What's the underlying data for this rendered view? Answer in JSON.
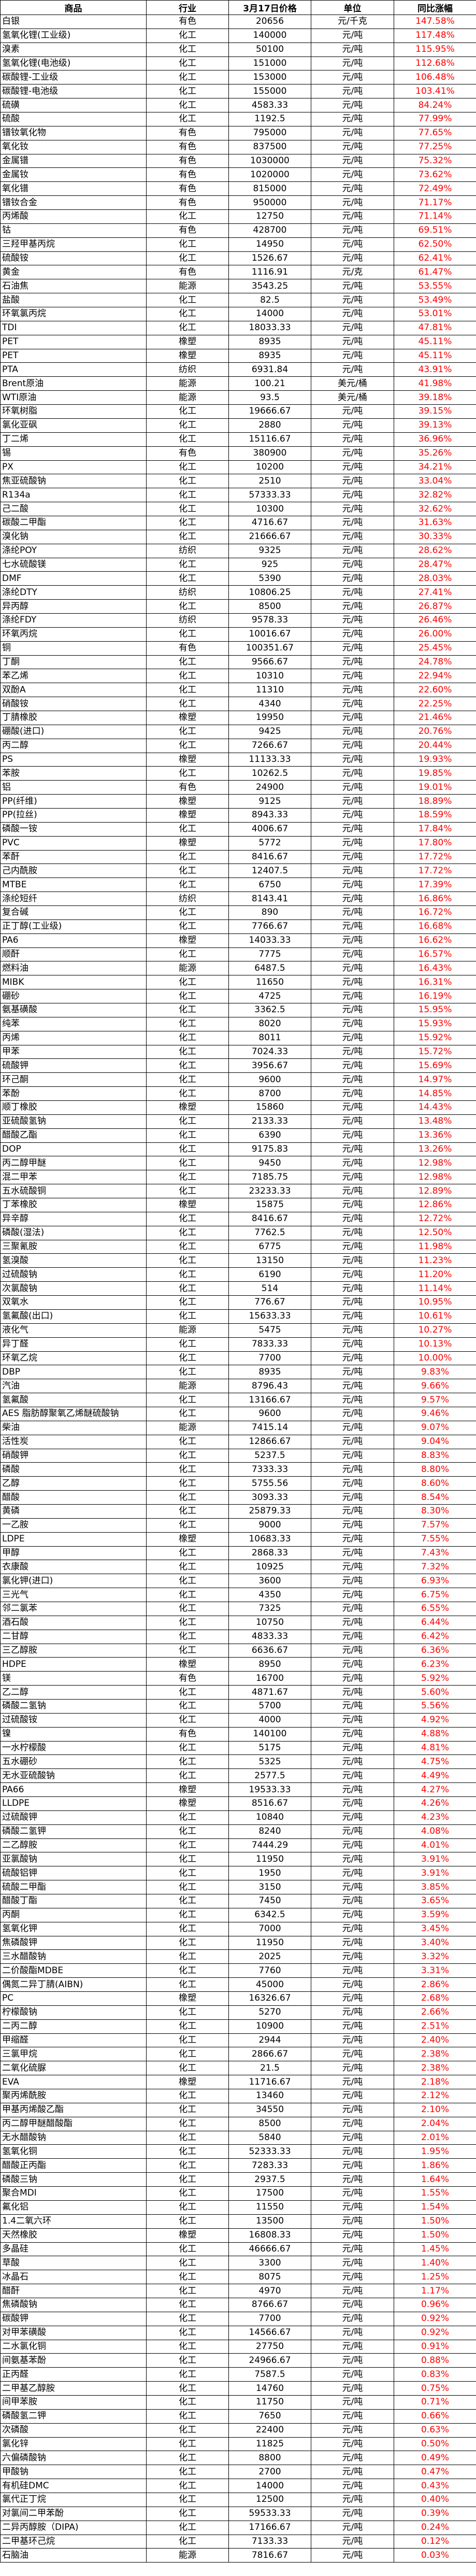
{
  "header": [
    "商品",
    "行业",
    "3月17日价格",
    "单位",
    "同比涨幅"
  ],
  "colors": {
    "change_text": "#ff0000"
  },
  "rows": [
    [
      "白银",
      "有色",
      "20656",
      "元/千克",
      "147.58%"
    ],
    [
      "氢氧化锂(工业级)",
      "化工",
      "140000",
      "元/吨",
      "117.48%"
    ],
    [
      "溴素",
      "化工",
      "50100",
      "元/吨",
      "115.95%"
    ],
    [
      "氢氧化锂(电池级)",
      "化工",
      "151000",
      "元/吨",
      "112.68%"
    ],
    [
      "碳酸锂-工业级",
      "化工",
      "153000",
      "元/吨",
      "106.48%"
    ],
    [
      "碳酸锂-电池级",
      "化工",
      "155000",
      "元/吨",
      "103.41%"
    ],
    [
      "硫磺",
      "化工",
      "4583.33",
      "元/吨",
      "84.24%"
    ],
    [
      "硫酸",
      "化工",
      "1192.5",
      "元/吨",
      "77.99%"
    ],
    [
      "镨钕氧化物",
      "有色",
      "795000",
      "元/吨",
      "77.65%"
    ],
    [
      "氧化钕",
      "有色",
      "837500",
      "元/吨",
      "77.25%"
    ],
    [
      "金属镨",
      "有色",
      "1030000",
      "元/吨",
      "75.32%"
    ],
    [
      "金属钕",
      "有色",
      "1020000",
      "元/吨",
      "73.62%"
    ],
    [
      "氧化镨",
      "有色",
      "815000",
      "元/吨",
      "72.49%"
    ],
    [
      "镨钕合金",
      "有色",
      "950000",
      "元/吨",
      "71.17%"
    ],
    [
      "丙烯酸",
      "化工",
      "12750",
      "元/吨",
      "71.14%"
    ],
    [
      "钴",
      "有色",
      "428700",
      "元/吨",
      "69.51%"
    ],
    [
      "三羟甲基丙烷",
      "化工",
      "14950",
      "元/吨",
      "62.50%"
    ],
    [
      "硫酸铵",
      "化工",
      "1526.67",
      "元/吨",
      "62.41%"
    ],
    [
      "黄金",
      "有色",
      "1116.91",
      "元/克",
      "61.47%"
    ],
    [
      "石油焦",
      "能源",
      "3543.25",
      "元/吨",
      "53.55%"
    ],
    [
      "盐酸",
      "化工",
      "82.5",
      "元/吨",
      "53.49%"
    ],
    [
      "环氧氯丙烷",
      "化工",
      "14000",
      "元/吨",
      "53.01%"
    ],
    [
      "TDI",
      "化工",
      "18033.33",
      "元/吨",
      "47.81%"
    ],
    [
      "PET",
      "橡塑",
      "8935",
      "元/吨",
      "45.11%"
    ],
    [
      "PET",
      "橡塑",
      "8935",
      "元/吨",
      "45.11%"
    ],
    [
      "PTA",
      "纺织",
      "6931.84",
      "元/吨",
      "43.91%"
    ],
    [
      "Brent原油",
      "能源",
      "100.21",
      "美元/桶",
      "41.98%"
    ],
    [
      "WTI原油",
      "能源",
      "93.5",
      "美元/桶",
      "39.18%"
    ],
    [
      "环氧树脂",
      "化工",
      "19666.67",
      "元/吨",
      "39.15%"
    ],
    [
      "氯化亚砜",
      "化工",
      "2880",
      "元/吨",
      "39.13%"
    ],
    [
      "丁二烯",
      "化工",
      "15116.67",
      "元/吨",
      "36.96%"
    ],
    [
      "锡",
      "有色",
      "380900",
      "元/吨",
      "35.26%"
    ],
    [
      "PX",
      "化工",
      "10200",
      "元/吨",
      "34.21%"
    ],
    [
      "焦亚硫酸钠",
      "化工",
      "2510",
      "元/吨",
      "33.04%"
    ],
    [
      "R134a",
      "化工",
      "57333.33",
      "元/吨",
      "32.82%"
    ],
    [
      "己二酸",
      "化工",
      "10300",
      "元/吨",
      "32.62%"
    ],
    [
      "碳酸二甲酯",
      "化工",
      "4716.67",
      "元/吨",
      "31.63%"
    ],
    [
      "溴化钠",
      "化工",
      "21666.67",
      "元/吨",
      "30.33%"
    ],
    [
      "涤纶POY",
      "纺织",
      "9325",
      "元/吨",
      "28.62%"
    ],
    [
      "七水硫酸镁",
      "化工",
      "925",
      "元/吨",
      "28.47%"
    ],
    [
      "DMF",
      "化工",
      "5390",
      "元/吨",
      "28.03%"
    ],
    [
      "涤纶DTY",
      "纺织",
      "10806.25",
      "元/吨",
      "27.41%"
    ],
    [
      "异丙醇",
      "化工",
      "8500",
      "元/吨",
      "26.87%"
    ],
    [
      "涤纶FDY",
      "纺织",
      "9578.33",
      "元/吨",
      "26.46%"
    ],
    [
      "环氧丙烷",
      "化工",
      "10016.67",
      "元/吨",
      "26.00%"
    ],
    [
      "铜",
      "有色",
      "100351.67",
      "元/吨",
      "25.45%"
    ],
    [
      "丁酮",
      "化工",
      "9566.67",
      "元/吨",
      "24.78%"
    ],
    [
      "苯乙烯",
      "化工",
      "10310",
      "元/吨",
      "22.94%"
    ],
    [
      "双酚A",
      "化工",
      "11310",
      "元/吨",
      "22.60%"
    ],
    [
      "硝酸铵",
      "化工",
      "4340",
      "元/吨",
      "22.25%"
    ],
    [
      "丁腈橡胶",
      "橡塑",
      "19950",
      "元/吨",
      "21.46%"
    ],
    [
      "硼酸(进口)",
      "化工",
      "9425",
      "元/吨",
      "20.76%"
    ],
    [
      "丙二醇",
      "化工",
      "7266.67",
      "元/吨",
      "20.44%"
    ],
    [
      "PS",
      "橡塑",
      "11133.33",
      "元/吨",
      "19.93%"
    ],
    [
      "苯胺",
      "化工",
      "10262.5",
      "元/吨",
      "19.85%"
    ],
    [
      "铝",
      "有色",
      "24900",
      "元/吨",
      "19.01%"
    ],
    [
      "PP(纤维)",
      "橡塑",
      "9125",
      "元/吨",
      "18.89%"
    ],
    [
      "PP(拉丝)",
      "橡塑",
      "8943.33",
      "元/吨",
      "18.59%"
    ],
    [
      "磷酸一铵",
      "化工",
      "4006.67",
      "元/吨",
      "17.84%"
    ],
    [
      "PVC",
      "橡塑",
      "5772",
      "元/吨",
      "17.80%"
    ],
    [
      "苯酐",
      "化工",
      "8416.67",
      "元/吨",
      "17.72%"
    ],
    [
      "己内酰胺",
      "化工",
      "12407.5",
      "元/吨",
      "17.72%"
    ],
    [
      "MTBE",
      "化工",
      "6750",
      "元/吨",
      "17.39%"
    ],
    [
      "涤纶短纤",
      "纺织",
      "8143.41",
      "元/吨",
      "16.86%"
    ],
    [
      "复合碱",
      "化工",
      "890",
      "元/吨",
      "16.72%"
    ],
    [
      "正丁醇(工业级)",
      "化工",
      "7766.67",
      "元/吨",
      "16.68%"
    ],
    [
      "PA6",
      "橡塑",
      "14033.33",
      "元/吨",
      "16.62%"
    ],
    [
      "顺酐",
      "化工",
      "7775",
      "元/吨",
      "16.57%"
    ],
    [
      "燃料油",
      "能源",
      "6487.5",
      "元/吨",
      "16.43%"
    ],
    [
      "MIBK",
      "化工",
      "11650",
      "元/吨",
      "16.31%"
    ],
    [
      "硼砂",
      "化工",
      "4725",
      "元/吨",
      "16.19%"
    ],
    [
      "氨基磺酸",
      "化工",
      "3362.5",
      "元/吨",
      "15.95%"
    ],
    [
      "纯苯",
      "化工",
      "8020",
      "元/吨",
      "15.93%"
    ],
    [
      "丙烯",
      "化工",
      "8011",
      "元/吨",
      "15.92%"
    ],
    [
      "甲苯",
      "化工",
      "7024.33",
      "元/吨",
      "15.72%"
    ],
    [
      "硫酸钾",
      "化工",
      "3956.67",
      "元/吨",
      "15.69%"
    ],
    [
      "环己酮",
      "化工",
      "9600",
      "元/吨",
      "14.97%"
    ],
    [
      "苯酚",
      "化工",
      "8700",
      "元/吨",
      "14.85%"
    ],
    [
      "顺丁橡胶",
      "橡塑",
      "15860",
      "元/吨",
      "14.43%"
    ],
    [
      "亚硫酸氢钠",
      "化工",
      "2133.33",
      "元/吨",
      "13.48%"
    ],
    [
      "醋酸乙酯",
      "化工",
      "6390",
      "元/吨",
      "13.36%"
    ],
    [
      "DOP",
      "化工",
      "9175.83",
      "元/吨",
      "13.26%"
    ],
    [
      "丙二醇甲醚",
      "化工",
      "9450",
      "元/吨",
      "12.98%"
    ],
    [
      "混二甲苯",
      "化工",
      "7185.75",
      "元/吨",
      "12.98%"
    ],
    [
      "五水硫酸铜",
      "化工",
      "23233.33",
      "元/吨",
      "12.89%"
    ],
    [
      "丁苯橡胶",
      "橡塑",
      "15875",
      "元/吨",
      "12.86%"
    ],
    [
      "异辛醇",
      "化工",
      "8416.67",
      "元/吨",
      "12.72%"
    ],
    [
      "磷酸(湿法)",
      "化工",
      "7762.5",
      "元/吨",
      "12.50%"
    ],
    [
      "三聚氰胺",
      "化工",
      "6775",
      "元/吨",
      "11.98%"
    ],
    [
      "氢溴酸",
      "化工",
      "13150",
      "元/吨",
      "11.23%"
    ],
    [
      "过硫酸钠",
      "化工",
      "6190",
      "元/吨",
      "11.20%"
    ],
    [
      "次氯酸钠",
      "化工",
      "514",
      "元/吨",
      "11.14%"
    ],
    [
      "双氧水",
      "化工",
      "776.67",
      "元/吨",
      "10.95%"
    ],
    [
      "氢氟酸(出口)",
      "化工",
      "15633.33",
      "元/吨",
      "10.61%"
    ],
    [
      "液化气",
      "能源",
      "5475",
      "元/吨",
      "10.27%"
    ],
    [
      "异丁醛",
      "化工",
      "7833.33",
      "元/吨",
      "10.13%"
    ],
    [
      "环氧乙烷",
      "化工",
      "7700",
      "元/吨",
      "10.00%"
    ],
    [
      "DBP",
      "化工",
      "8935",
      "元/吨",
      "9.83%"
    ],
    [
      "汽油",
      "能源",
      "8796.43",
      "元/吨",
      "9.66%"
    ],
    [
      "氢氟酸",
      "化工",
      "13166.67",
      "元/吨",
      "9.57%"
    ],
    [
      "AES 脂肪醇聚氧乙烯醚硫酸钠",
      "化工",
      "9600",
      "元/吨",
      "9.46%"
    ],
    [
      "柴油",
      "能源",
      "7415.14",
      "元/吨",
      "9.07%"
    ],
    [
      "活性炭",
      "化工",
      "12866.67",
      "元/吨",
      "9.04%"
    ],
    [
      "硝酸钾",
      "化工",
      "5237.5",
      "元/吨",
      "8.83%"
    ],
    [
      "磷酸",
      "化工",
      "7333.33",
      "元/吨",
      "8.80%"
    ],
    [
      "乙醇",
      "化工",
      "5755.56",
      "元/吨",
      "8.60%"
    ],
    [
      "醋酸",
      "化工",
      "3093.33",
      "元/吨",
      "8.54%"
    ],
    [
      "黄磷",
      "化工",
      "25879.33",
      "元/吨",
      "8.30%"
    ],
    [
      "一乙胺",
      "化工",
      "9000",
      "元/吨",
      "7.57%"
    ],
    [
      "LDPE",
      "橡塑",
      "10683.33",
      "元/吨",
      "7.55%"
    ],
    [
      "甲醇",
      "化工",
      "2868.33",
      "元/吨",
      "7.43%"
    ],
    [
      "衣康酸",
      "化工",
      "10925",
      "元/吨",
      "7.32%"
    ],
    [
      "氯化钾(进口)",
      "化工",
      "3600",
      "元/吨",
      "6.93%"
    ],
    [
      "三光气",
      "化工",
      "4350",
      "元/吨",
      "6.75%"
    ],
    [
      "邻二氯苯",
      "化工",
      "7325",
      "元/吨",
      "6.55%"
    ],
    [
      "酒石酸",
      "化工",
      "10750",
      "元/吨",
      "6.44%"
    ],
    [
      "二甘醇",
      "化工",
      "4833.33",
      "元/吨",
      "6.42%"
    ],
    [
      "三乙醇胺",
      "化工",
      "6636.67",
      "元/吨",
      "6.36%"
    ],
    [
      "HDPE",
      "橡塑",
      "8950",
      "元/吨",
      "6.23%"
    ],
    [
      "镁",
      "有色",
      "16700",
      "元/吨",
      "5.92%"
    ],
    [
      "乙二醇",
      "化工",
      "4871.67",
      "元/吨",
      "5.60%"
    ],
    [
      "磷酸二氢钠",
      "化工",
      "5700",
      "元/吨",
      "5.56%"
    ],
    [
      "过硫酸铵",
      "化工",
      "4000",
      "元/吨",
      "4.92%"
    ],
    [
      "镍",
      "有色",
      "140100",
      "元/吨",
      "4.88%"
    ],
    [
      "一水柠檬酸",
      "化工",
      "5175",
      "元/吨",
      "4.81%"
    ],
    [
      "五水硼砂",
      "化工",
      "5325",
      "元/吨",
      "4.75%"
    ],
    [
      "无水亚硫酸钠",
      "化工",
      "2577.5",
      "元/吨",
      "4.49%"
    ],
    [
      "PA66",
      "橡塑",
      "19533.33",
      "元/吨",
      "4.27%"
    ],
    [
      "LLDPE",
      "橡塑",
      "8516.67",
      "元/吨",
      "4.26%"
    ],
    [
      "过硫酸钾",
      "化工",
      "10840",
      "元/吨",
      "4.23%"
    ],
    [
      "磷酸二氢钾",
      "化工",
      "8240",
      "元/吨",
      "4.08%"
    ],
    [
      "二乙醇胺",
      "化工",
      "7444.29",
      "元/吨",
      "4.01%"
    ],
    [
      "亚氯酸钠",
      "化工",
      "11950",
      "元/吨",
      "3.91%"
    ],
    [
      "硫酸铝钾",
      "化工",
      "1950",
      "元/吨",
      "3.91%"
    ],
    [
      "硫酸二甲酯",
      "化工",
      "3150",
      "元/吨",
      "3.85%"
    ],
    [
      "醋酸丁酯",
      "化工",
      "7450",
      "元/吨",
      "3.65%"
    ],
    [
      "丙酮",
      "化工",
      "6342.5",
      "元/吨",
      "3.59%"
    ],
    [
      "氢氧化钾",
      "化工",
      "7000",
      "元/吨",
      "3.45%"
    ],
    [
      "焦磷酸钾",
      "化工",
      "11950",
      "元/吨",
      "3.40%"
    ],
    [
      "三水醋酸钠",
      "化工",
      "2025",
      "元/吨",
      "3.32%"
    ],
    [
      "二价酸酯MDBE",
      "化工",
      "7760",
      "元/吨",
      "3.31%"
    ],
    [
      "偶氮二异丁腈(AIBN)",
      "化工",
      "45000",
      "元/吨",
      "2.86%"
    ],
    [
      "PC",
      "橡塑",
      "16326.67",
      "元/吨",
      "2.68%"
    ],
    [
      "柠檬酸钠",
      "化工",
      "5270",
      "元/吨",
      "2.66%"
    ],
    [
      "二丙二醇",
      "化工",
      "10900",
      "元/吨",
      "2.51%"
    ],
    [
      "甲缩醛",
      "化工",
      "2944",
      "元/吨",
      "2.40%"
    ],
    [
      "三氯甲烷",
      "化工",
      "2866.67",
      "元/吨",
      "2.38%"
    ],
    [
      "二氧化硫脲",
      "化工",
      "21.5",
      "元/吨",
      "2.38%"
    ],
    [
      "EVA",
      "橡塑",
      "11716.67",
      "元/吨",
      "2.18%"
    ],
    [
      "聚丙烯酰胺",
      "化工",
      "13460",
      "元/吨",
      "2.12%"
    ],
    [
      "甲基丙烯酸乙酯",
      "化工",
      "34550",
      "元/吨",
      "2.10%"
    ],
    [
      "丙二醇甲醚醋酸酯",
      "化工",
      "8500",
      "元/吨",
      "2.04%"
    ],
    [
      "无水醋酸钠",
      "化工",
      "5840",
      "元/吨",
      "2.01%"
    ],
    [
      "氢氧化铜",
      "化工",
      "52333.33",
      "元/吨",
      "1.95%"
    ],
    [
      "醋酸正丙酯",
      "化工",
      "7283.33",
      "元/吨",
      "1.86%"
    ],
    [
      "磷酸三钠",
      "化工",
      "2937.5",
      "元/吨",
      "1.64%"
    ],
    [
      "聚合MDI",
      "化工",
      "17500",
      "元/吨",
      "1.55%"
    ],
    [
      "氟化铝",
      "化工",
      "11550",
      "元/吨",
      "1.54%"
    ],
    [
      "1.4二氧六环",
      "化工",
      "13500",
      "元/吨",
      "1.50%"
    ],
    [
      "天然橡胶",
      "橡塑",
      "16808.33",
      "元/吨",
      "1.50%"
    ],
    [
      "多晶硅",
      "化工",
      "46666.67",
      "元/吨",
      "1.45%"
    ],
    [
      "草酸",
      "化工",
      "3300",
      "元/吨",
      "1.40%"
    ],
    [
      "冰晶石",
      "化工",
      "8075",
      "元/吨",
      "1.25%"
    ],
    [
      "醋酐",
      "化工",
      "4970",
      "元/吨",
      "1.17%"
    ],
    [
      "焦磷酸钠",
      "化工",
      "8766.67",
      "元/吨",
      "0.96%"
    ],
    [
      "碳酸钾",
      "化工",
      "7700",
      "元/吨",
      "0.92%"
    ],
    [
      "对甲苯磺酸",
      "化工",
      "14566.67",
      "元/吨",
      "0.92%"
    ],
    [
      "二水氯化铜",
      "化工",
      "27750",
      "元/吨",
      "0.91%"
    ],
    [
      "间氨基苯酚",
      "化工",
      "24966.67",
      "元/吨",
      "0.88%"
    ],
    [
      "正丙醛",
      "化工",
      "7587.5",
      "元/吨",
      "0.83%"
    ],
    [
      "二甲基乙醇胺",
      "化工",
      "14760",
      "元/吨",
      "0.75%"
    ],
    [
      "间甲苯胺",
      "化工",
      "11750",
      "元/吨",
      "0.71%"
    ],
    [
      "磷酸氢二钾",
      "化工",
      "7650",
      "元/吨",
      "0.66%"
    ],
    [
      "次磷酸",
      "化工",
      "22400",
      "元/吨",
      "0.63%"
    ],
    [
      "氯化锌",
      "化工",
      "11825",
      "元/吨",
      "0.50%"
    ],
    [
      "六偏磷酸钠",
      "化工",
      "8800",
      "元/吨",
      "0.49%"
    ],
    [
      "甲酸钠",
      "化工",
      "2700",
      "元/吨",
      "0.47%"
    ],
    [
      "有机硅DMC",
      "化工",
      "14000",
      "元/吨",
      "0.43%"
    ],
    [
      "氯代正丁烷",
      "化工",
      "12500",
      "元/吨",
      "0.40%"
    ],
    [
      "对氯间二甲苯酚",
      "化工",
      "59533.33",
      "元/吨",
      "0.39%"
    ],
    [
      "二异丙醇胺（DIPA)",
      "化工",
      "17166.67",
      "元/吨",
      "0.24%"
    ],
    [
      "二甲基环己烷",
      "化工",
      "7133.33",
      "元/吨",
      "0.12%"
    ],
    [
      "石脑油",
      "能源",
      "7816.67",
      "元/吨",
      "0.03%"
    ]
  ]
}
